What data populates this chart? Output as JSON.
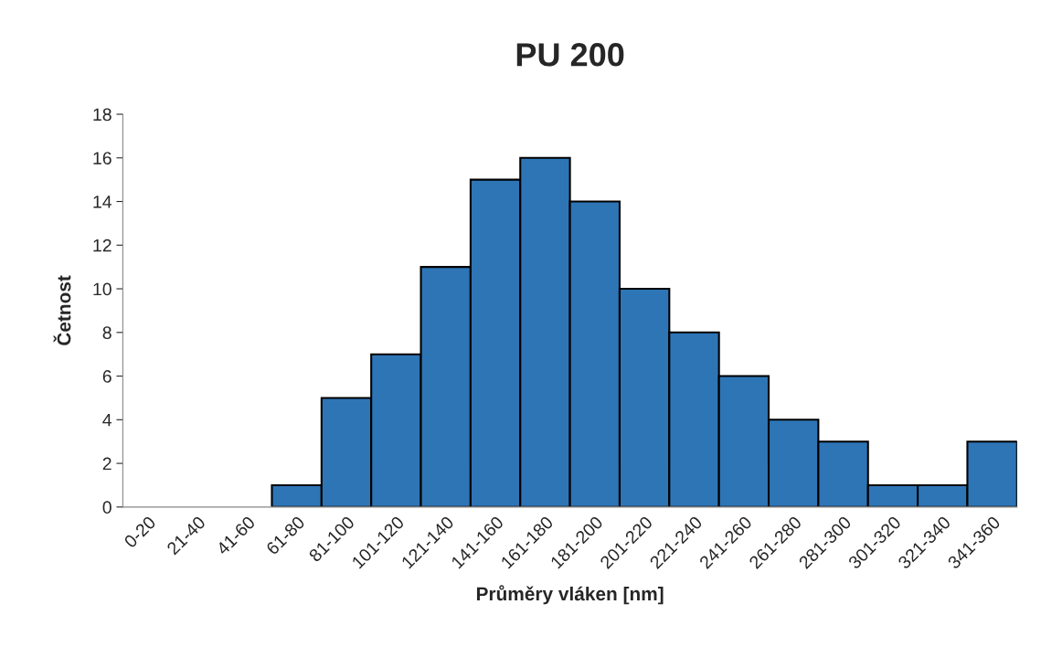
{
  "chart_data": {
    "type": "bar",
    "title": "PU 200",
    "xlabel": "Průměry vláken [nm]",
    "ylabel": "Četnost",
    "categories": [
      "0-20",
      "21-40",
      "41-60",
      "61-80",
      "81-100",
      "101-120",
      "121-140",
      "141-160",
      "161-180",
      "181-200",
      "201-220",
      "221-240",
      "241-260",
      "261-280",
      "281-300",
      "301-320",
      "321-340",
      "341-360"
    ],
    "values": [
      0,
      0,
      0,
      1,
      5,
      7,
      11,
      15,
      16,
      14,
      10,
      8,
      6,
      4,
      3,
      1,
      1,
      3
    ],
    "color": "#2e75b6",
    "ylim": [
      0,
      18
    ],
    "yticks": [
      0,
      2,
      4,
      6,
      8,
      10,
      12,
      14,
      16,
      18
    ],
    "grid": false
  }
}
